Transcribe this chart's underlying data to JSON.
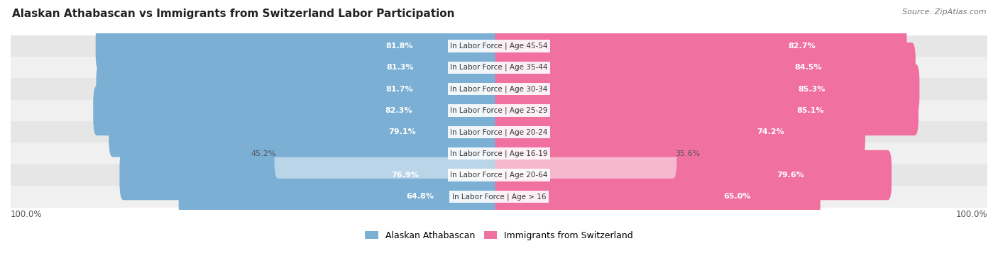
{
  "title": "Alaskan Athabascan vs Immigrants from Switzerland Labor Participation",
  "source": "Source: ZipAtlas.com",
  "categories": [
    "In Labor Force | Age > 16",
    "In Labor Force | Age 20-64",
    "In Labor Force | Age 16-19",
    "In Labor Force | Age 20-24",
    "In Labor Force | Age 25-29",
    "In Labor Force | Age 30-34",
    "In Labor Force | Age 35-44",
    "In Labor Force | Age 45-54"
  ],
  "alaskan_values": [
    64.8,
    76.9,
    45.2,
    79.1,
    82.3,
    81.7,
    81.3,
    81.8
  ],
  "switzerland_values": [
    65.0,
    79.6,
    35.6,
    74.2,
    85.1,
    85.3,
    84.5,
    82.7
  ],
  "alaskan_color": "#7bafd4",
  "alaskan_light_color": "#bad4e8",
  "switzerland_color": "#f070a0",
  "switzerland_light_color": "#f5b8cc",
  "row_bg_colors": [
    "#f0f0f0",
    "#e6e6e6"
  ],
  "max_value": 100.0,
  "fig_width": 14.06,
  "fig_height": 3.95
}
